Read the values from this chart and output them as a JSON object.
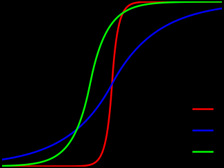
{
  "background_color": "#000000",
  "figure_facecolor": "#000000",
  "axes_facecolor": "#000000",
  "line_width": 1.8,
  "distributions": [
    {
      "mu": 0,
      "b": 0.5,
      "color": "#ff0000"
    },
    {
      "mu": 0,
      "b": 4.0,
      "color": "#0000ff"
    },
    {
      "mu": -2,
      "b": 1.5,
      "color": "#00ff00"
    }
  ],
  "xlim": [
    -10,
    10
  ],
  "ylim": [
    0,
    1.0
  ],
  "legend_lines_only": true
}
